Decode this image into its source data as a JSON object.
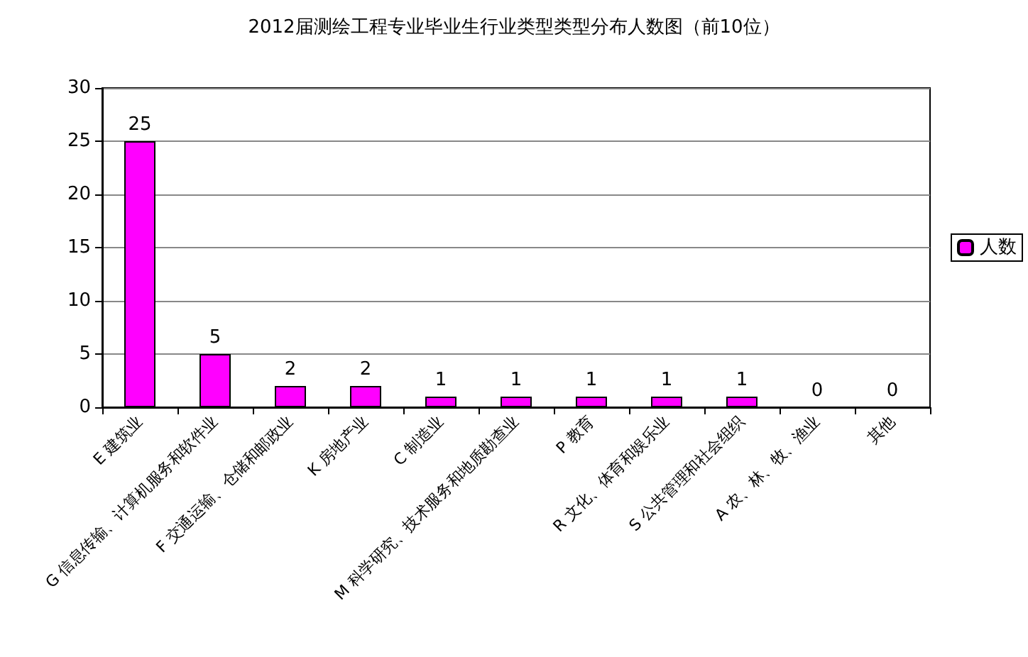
{
  "chart_data": {
    "type": "bar",
    "title": "2012届测绘工程专业毕业生行业类型类型分布人数图（前10位）",
    "categories": [
      "E 建筑业",
      "G 信息传输、计算机服务和软件业",
      "F 交通运输、仓储和邮政业",
      "K 房地产业",
      "C 制造业",
      "M 科学研究、技术服务和地质勘查业",
      "P 教育",
      "R 文化、体育和娱乐业",
      "S 公共管理和社会组织",
      "A 农、林、牧、渔业",
      "其他"
    ],
    "series": [
      {
        "name": "人数",
        "color": "#ff00ff",
        "values": [
          25,
          5,
          2,
          2,
          1,
          1,
          1,
          1,
          1,
          0,
          0
        ]
      }
    ],
    "ylim": [
      0,
      30
    ],
    "yticks": [
      0,
      5,
      10,
      15,
      20,
      25,
      30
    ],
    "grid": "y",
    "legend": "right",
    "data_labels": true
  }
}
